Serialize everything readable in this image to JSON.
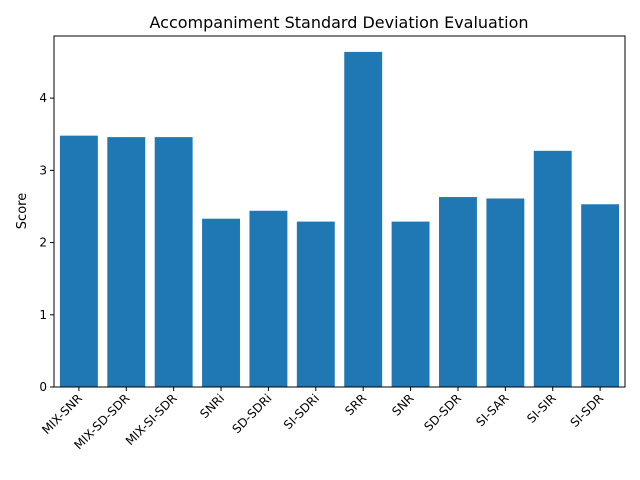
{
  "chart_data": {
    "type": "bar",
    "title": "Accompaniment Standard Deviation Evaluation",
    "xlabel": "",
    "ylabel": "Score",
    "categories": [
      "MIX-SNR",
      "MIX-SD-SDR",
      "MIX-SI-SDR",
      "SNRi",
      "SD-SDRi",
      "SI-SDRi",
      "SRR",
      "SNR",
      "SD-SDR",
      "SI-SAR",
      "SI-SIR",
      "SI-SDR"
    ],
    "values": [
      3.48,
      3.46,
      3.46,
      2.33,
      2.44,
      2.29,
      4.64,
      2.29,
      2.63,
      2.61,
      3.27,
      2.53
    ],
    "ylim": [
      0,
      4.86
    ],
    "yticks": [
      0,
      1,
      2,
      3,
      4
    ],
    "bar_color": "#1f77b4",
    "grid": false,
    "legend": "none"
  }
}
